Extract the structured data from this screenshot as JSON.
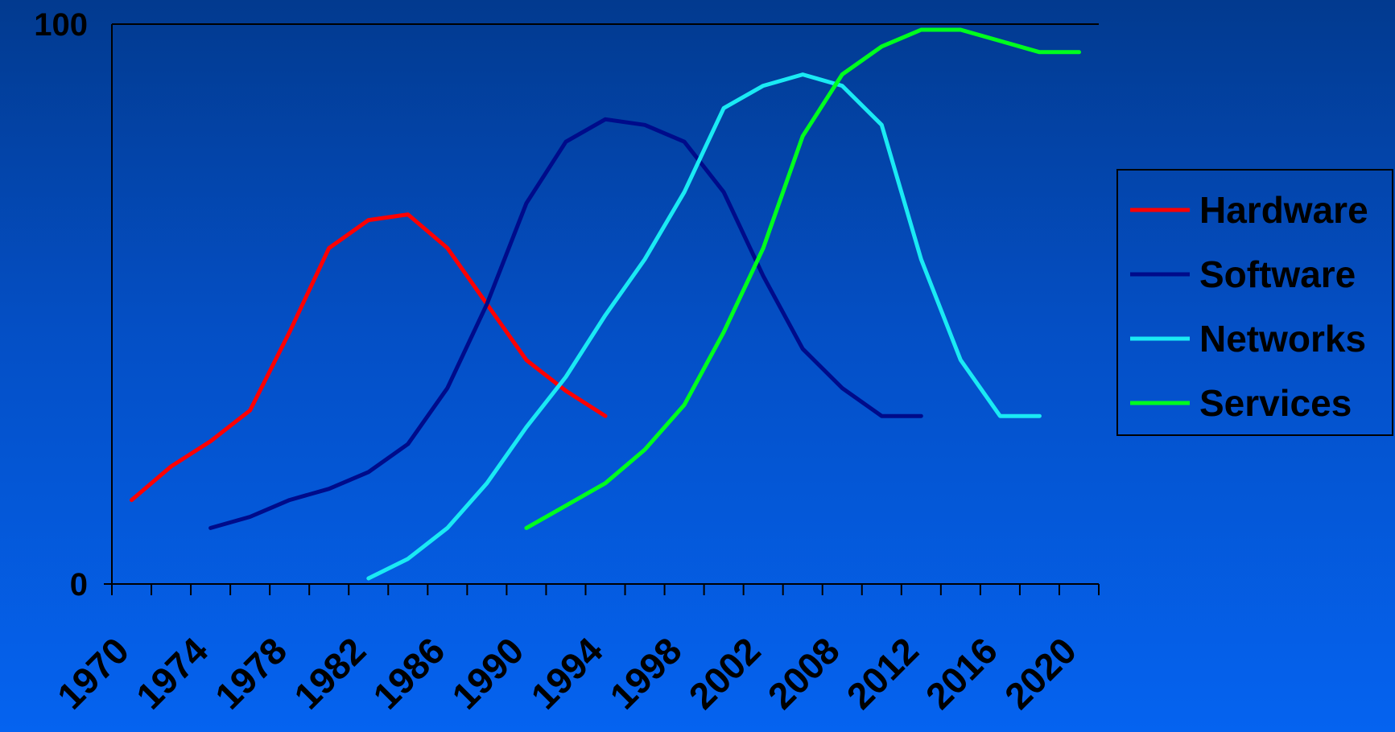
{
  "chart_data": {
    "type": "line",
    "title": "",
    "xlabel": "",
    "ylabel": "",
    "ylim": [
      0,
      100
    ],
    "y_ticks": [
      "0",
      "100"
    ],
    "x_tick_labels": [
      "1970",
      "1974",
      "1978",
      "1982",
      "1986",
      "1990",
      "1994",
      "1998",
      "2002",
      "2008",
      "2012",
      "2016",
      "2020"
    ],
    "x_range": [
      0,
      25
    ],
    "grid": false,
    "legend_position": "right",
    "series": [
      {
        "name": "Hardware",
        "color": "#ff0000",
        "x": [
          0.5,
          1.5,
          2.5,
          3.5,
          4.5,
          5.5,
          6.5,
          7.5,
          8.5,
          9.5,
          10.5,
          11.5,
          12.5
        ],
        "y": [
          15,
          21,
          25.5,
          31,
          45,
          60,
          65,
          66,
          60,
          50,
          40,
          34.5,
          30
        ]
      },
      {
        "name": "Software",
        "color": "#000b8a",
        "x": [
          2.5,
          3.5,
          4.5,
          5.5,
          6.5,
          7.5,
          8.5,
          9.5,
          10.5,
          11.5,
          12.5,
          13.5,
          14.5,
          15.5,
          16.5,
          17.5,
          18.5,
          19.5,
          20.5
        ],
        "y": [
          10,
          12,
          15,
          17,
          20,
          25,
          35,
          50,
          68,
          79,
          83,
          82,
          79,
          70,
          55,
          42,
          35,
          30,
          30
        ]
      },
      {
        "name": "Networks",
        "color": "#1aeaf4",
        "x": [
          6.5,
          7.5,
          8.5,
          9.5,
          10.5,
          11.5,
          12.5,
          13.5,
          14.5,
          15.5,
          16.5,
          17.5,
          18.5,
          19.5,
          20.5,
          21.5,
          22.5,
          23.5
        ],
        "y": [
          1,
          4.5,
          10,
          18,
          28,
          37,
          48,
          58,
          70,
          85,
          89,
          91,
          89,
          82,
          58,
          40,
          30,
          30
        ]
      },
      {
        "name": "Services",
        "color": "#00ff1e",
        "x": [
          10.5,
          11.5,
          12.5,
          13.5,
          14.5,
          15.5,
          16.5,
          17.5,
          18.5,
          19.5,
          20.5,
          21.5,
          22.5,
          23.5,
          24.5
        ],
        "y": [
          10,
          14,
          18,
          24,
          32,
          45,
          60,
          80,
          91,
          96,
          99,
          99,
          97,
          95,
          95
        ]
      }
    ]
  },
  "legend": {
    "items": [
      {
        "label": "Hardware",
        "color": "#ff0000"
      },
      {
        "label": "Software",
        "color": "#000b8a"
      },
      {
        "label": "Networks",
        "color": "#1aeaf4"
      },
      {
        "label": "Services",
        "color": "#00ff1e"
      }
    ]
  }
}
